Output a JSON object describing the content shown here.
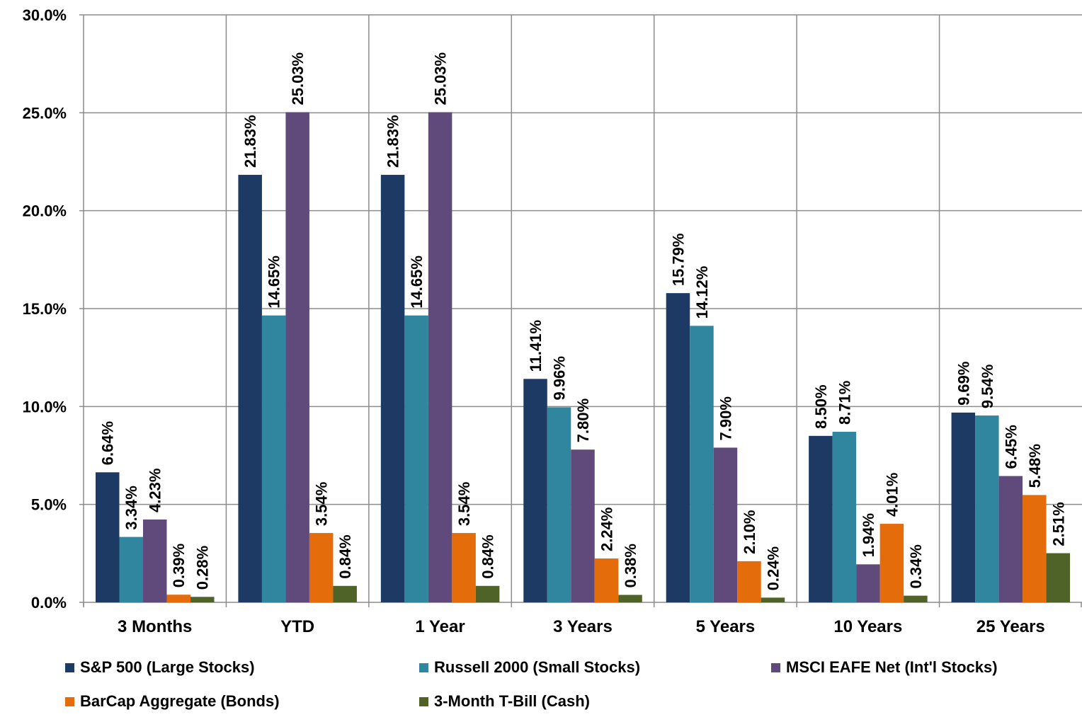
{
  "chart_data": {
    "type": "bar",
    "categories": [
      "3 Months",
      "YTD",
      "1 Year",
      "3 Years",
      "5 Years",
      "10 Years",
      "25 Years"
    ],
    "series": [
      {
        "name": "S&P 500 (Large Stocks)",
        "color": "#1c3a63",
        "values": [
          6.64,
          21.83,
          21.83,
          11.41,
          15.79,
          8.5,
          9.69
        ],
        "labels": [
          "6.64%",
          "21.83%",
          "21.83%",
          "11.41%",
          "15.79%",
          "8.50%",
          "9.69%"
        ]
      },
      {
        "name": "Russell 2000 (Small Stocks)",
        "color": "#31869f",
        "values": [
          3.34,
          14.65,
          14.65,
          9.96,
          14.12,
          8.71,
          9.54
        ],
        "labels": [
          "3.34%",
          "14.65%",
          "14.65%",
          "9.96%",
          "14.12%",
          "8.71%",
          "9.54%"
        ]
      },
      {
        "name": "MSCI EAFE Net (Int'l Stocks)",
        "color": "#604a7b",
        "values": [
          4.23,
          25.03,
          25.03,
          7.8,
          7.9,
          1.94,
          6.45
        ],
        "labels": [
          "4.23%",
          "25.03%",
          "25.03%",
          "7.80%",
          "7.90%",
          "1.94%",
          "6.45%"
        ]
      },
      {
        "name": "BarCap Aggregate (Bonds)",
        "color": "#e46c0a",
        "values": [
          0.39,
          3.54,
          3.54,
          2.24,
          2.1,
          4.01,
          5.48
        ],
        "labels": [
          "0.39%",
          "3.54%",
          "3.54%",
          "2.24%",
          "2.10%",
          "4.01%",
          "5.48%"
        ]
      },
      {
        "name": "3-Month T-Bill (Cash)",
        "color": "#4f6228",
        "values": [
          0.28,
          0.84,
          0.84,
          0.38,
          0.24,
          0.34,
          2.51
        ],
        "labels": [
          "0.28%",
          "0.84%",
          "0.84%",
          "0.38%",
          "0.24%",
          "0.34%",
          "2.51%"
        ]
      }
    ],
    "ylim": [
      0,
      30
    ],
    "yticks": [
      0,
      5,
      10,
      15,
      20,
      25,
      30
    ],
    "ytick_labels": [
      "0.0%",
      "5.0%",
      "10.0%",
      "15.0%",
      "20.0%",
      "25.0%",
      "30.0%"
    ],
    "grid": true,
    "legend_position": "bottom"
  }
}
